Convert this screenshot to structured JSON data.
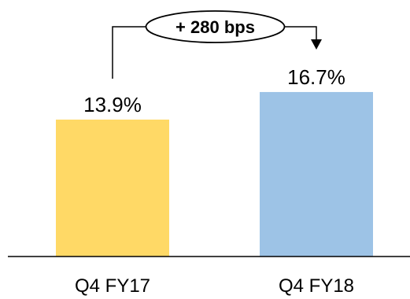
{
  "chart_data": {
    "type": "bar",
    "categories": [
      "Q4 FY17",
      "Q4 FY18"
    ],
    "values": [
      13.9,
      16.7
    ],
    "data_labels": [
      "13.9%",
      "16.7%"
    ],
    "colors": [
      "#FFD966",
      "#9DC3E6"
    ],
    "ylim": [
      0,
      20
    ],
    "grid": false,
    "legend": "none",
    "annotation": {
      "text": "+ 280 bps",
      "from": "Q4 FY17",
      "to": "Q4 FY18"
    }
  }
}
